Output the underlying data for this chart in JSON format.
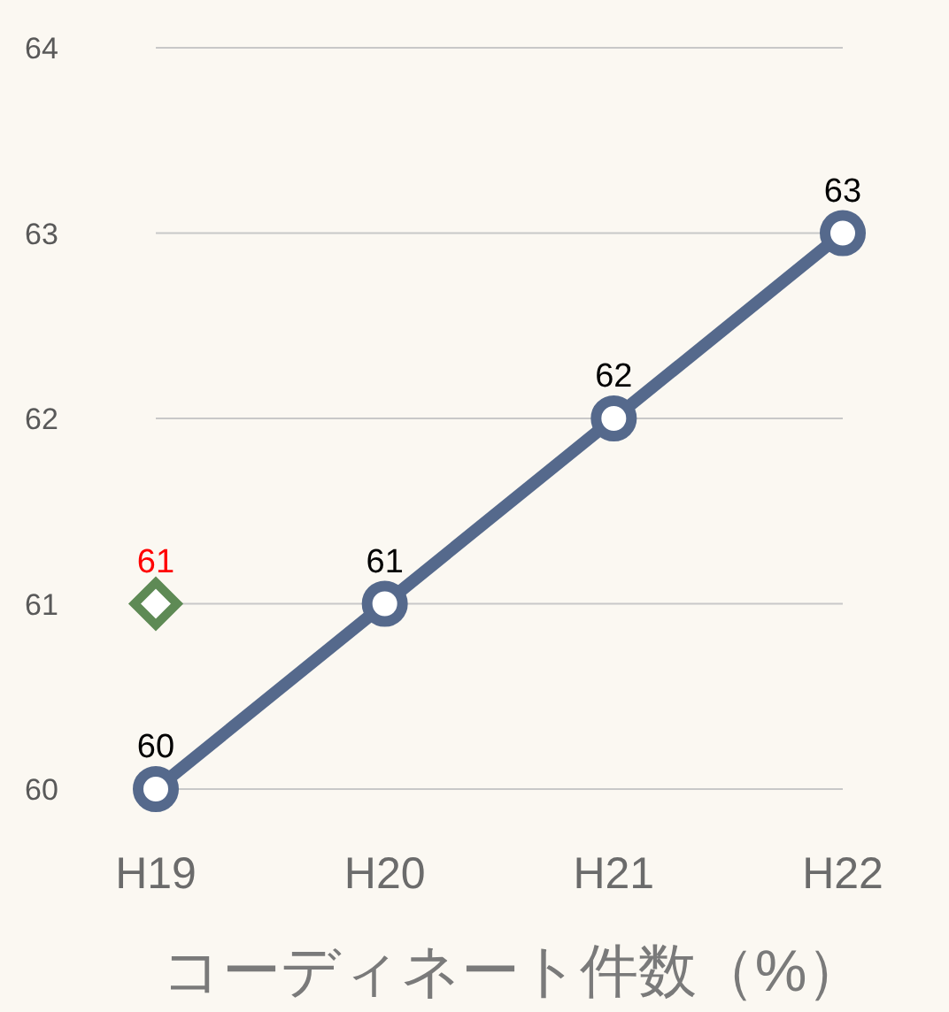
{
  "chart_data": {
    "type": "line",
    "categories": [
      "H19",
      "H20",
      "H21",
      "H22"
    ],
    "xlabel": "コーディネート件数（%）",
    "ylim": [
      60,
      64
    ],
    "yticks": [
      60,
      61,
      62,
      63,
      64
    ],
    "grid": "y",
    "data_labels": true,
    "series": [
      {
        "color": "#55698c",
        "values": [
          60,
          61,
          62,
          63
        ],
        "marker": "circle"
      },
      {
        "type": "scatter",
        "color": "#5e8a55",
        "x": [
          "H19"
        ],
        "values": [
          61
        ],
        "marker": "diamond"
      }
    ]
  }
}
